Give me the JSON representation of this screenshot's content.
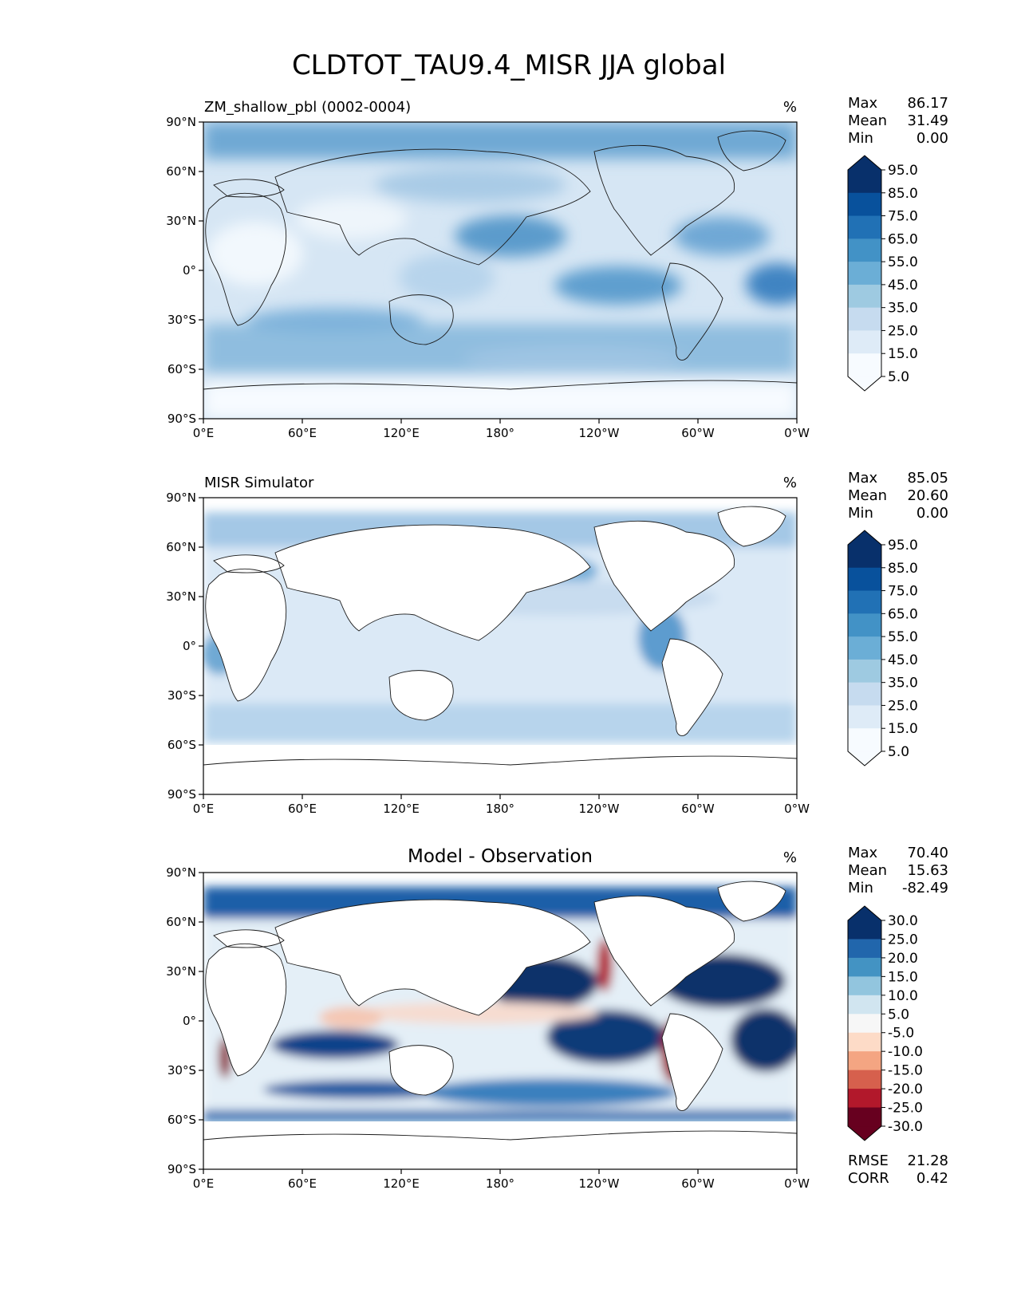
{
  "title": "CLDTOT_TAU9.4_MISR JJA global",
  "units_label": "%",
  "x_ticks": [
    "0°E",
    "60°E",
    "120°E",
    "180°",
    "120°W",
    "60°W",
    "0°W"
  ],
  "y_ticks": [
    "90°N",
    "60°N",
    "30°N",
    "0°",
    "30°S",
    "60°S",
    "90°S"
  ],
  "chart_data": [
    {
      "type": "heatmap",
      "panel": "model",
      "title": "ZM_shallow_pbl (0002-0004)",
      "units": "%",
      "xlim": [
        0,
        360
      ],
      "ylim": [
        -90,
        90
      ],
      "stats": {
        "Max": "86.17",
        "Mean": "31.49",
        "Min": "0.00"
      },
      "colorbar": {
        "colormap": "Blues",
        "levels": [
          "95.0",
          "85.0",
          "75.0",
          "65.0",
          "55.0",
          "45.0",
          "35.0",
          "25.0",
          "15.0",
          "5.0"
        ],
        "colors": [
          "#08306b",
          "#08519c",
          "#2171b5",
          "#4292c6",
          "#6baed6",
          "#9ecae1",
          "#c6dbef",
          "#deebf7",
          "#f7fbff"
        ]
      }
    },
    {
      "type": "heatmap",
      "panel": "observation",
      "title": "MISR Simulator",
      "units": "%",
      "xlim": [
        0,
        360
      ],
      "ylim": [
        -90,
        90
      ],
      "stats": {
        "Max": "85.05",
        "Mean": "20.60",
        "Min": "0.00"
      },
      "colorbar": {
        "colormap": "Blues",
        "levels": [
          "95.0",
          "85.0",
          "75.0",
          "65.0",
          "55.0",
          "45.0",
          "35.0",
          "25.0",
          "15.0",
          "5.0"
        ],
        "colors": [
          "#08306b",
          "#08519c",
          "#2171b5",
          "#4292c6",
          "#6baed6",
          "#9ecae1",
          "#c6dbef",
          "#deebf7",
          "#f7fbff"
        ]
      }
    },
    {
      "type": "heatmap",
      "panel": "difference",
      "title": "Model - Observation",
      "units": "%",
      "xlim": [
        0,
        360
      ],
      "ylim": [
        -90,
        90
      ],
      "stats": {
        "Max": "70.40",
        "Mean": "15.63",
        "Min": "-82.49"
      },
      "metrics": {
        "RMSE": "21.28",
        "CORR": "0.42"
      },
      "colorbar": {
        "colormap": "RdBu",
        "levels": [
          "30.0",
          "25.0",
          "20.0",
          "15.0",
          "10.0",
          "5.0",
          "-5.0",
          "-10.0",
          "-15.0",
          "-20.0",
          "-25.0",
          "-30.0"
        ],
        "colors": [
          "#08306b",
          "#2166ac",
          "#4393c3",
          "#92c5de",
          "#d1e5f0",
          "#f7f7f7",
          "#fddbc7",
          "#f4a582",
          "#d6604d",
          "#b2182b",
          "#67001f"
        ]
      }
    }
  ]
}
